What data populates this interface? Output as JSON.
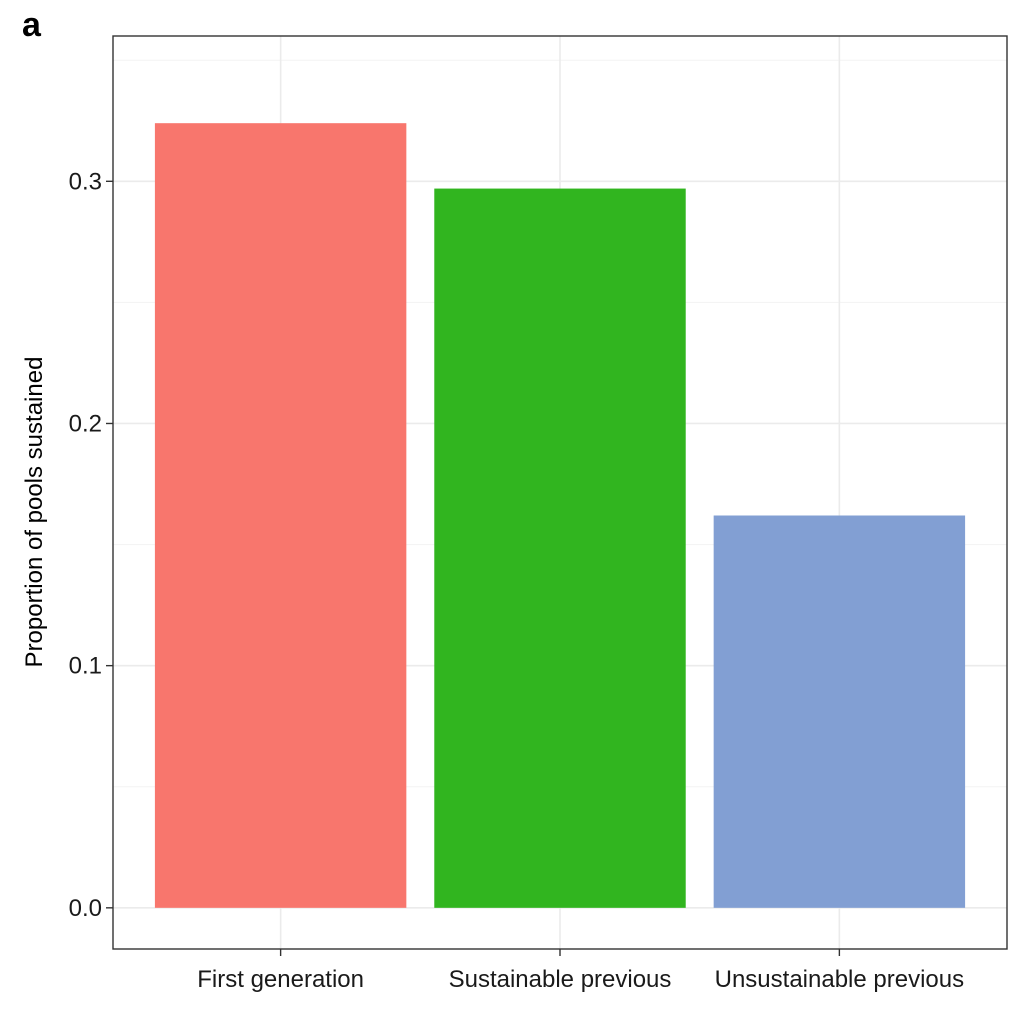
{
  "panel_label": "a",
  "chart_data": {
    "type": "bar",
    "categories": [
      "First generation",
      "Sustainable previous",
      "Unsustainable previous"
    ],
    "values": [
      0.324,
      0.297,
      0.162
    ],
    "colors": [
      "#F8766D",
      "#31B51F",
      "#829FD3"
    ],
    "title": "",
    "xlabel": "",
    "ylabel": "Proportion of pools sustained",
    "ylim": [
      -0.017,
      0.36
    ],
    "yticks": [
      0.0,
      0.1,
      0.2,
      0.3
    ],
    "ytick_labels": [
      "0.0",
      "0.1",
      "0.2",
      "0.3"
    ],
    "grid": true,
    "legend": "none"
  }
}
